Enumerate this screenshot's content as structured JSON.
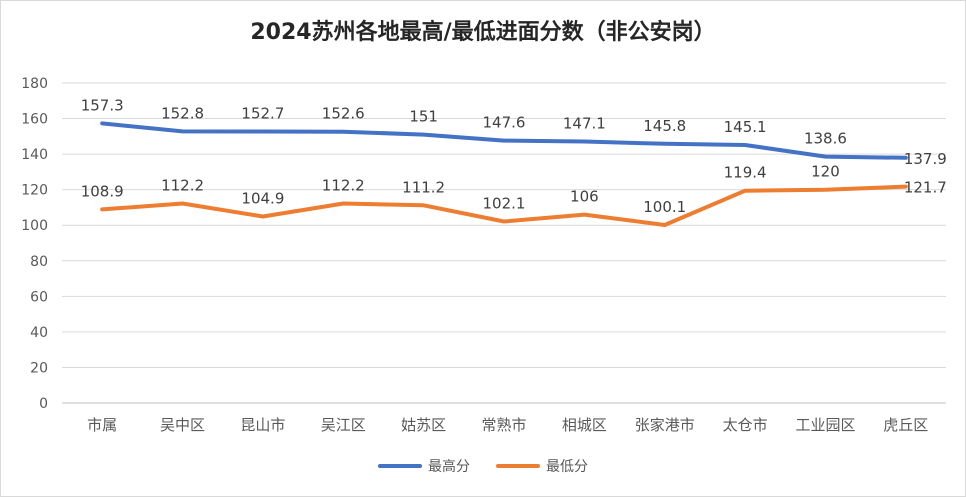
{
  "chart_data": {
    "type": "line",
    "title": "2024苏州各地最高/最低进面分数（非公安岗）",
    "xlabel": "",
    "ylabel": "",
    "ylim": [
      0,
      180
    ],
    "yticks": [
      0,
      20,
      40,
      60,
      80,
      100,
      120,
      140,
      160,
      180
    ],
    "grid": true,
    "legend_position": "bottom",
    "categories": [
      "市属",
      "吴中区",
      "昆山市",
      "吴江区",
      "姑苏区",
      "常熟市",
      "相城区",
      "张家港市",
      "太仓市",
      "工业园区",
      "虎丘区"
    ],
    "series": [
      {
        "name": "最高分",
        "color": "#4472c4",
        "values": [
          157.3,
          152.8,
          152.7,
          152.6,
          151,
          147.6,
          147.1,
          145.8,
          145.1,
          138.6,
          137.9
        ]
      },
      {
        "name": "最低分",
        "color": "#ed7d31",
        "values": [
          108.9,
          112.2,
          104.9,
          112.2,
          111.2,
          102.1,
          106,
          100.1,
          119.4,
          120,
          121.7
        ]
      }
    ]
  }
}
